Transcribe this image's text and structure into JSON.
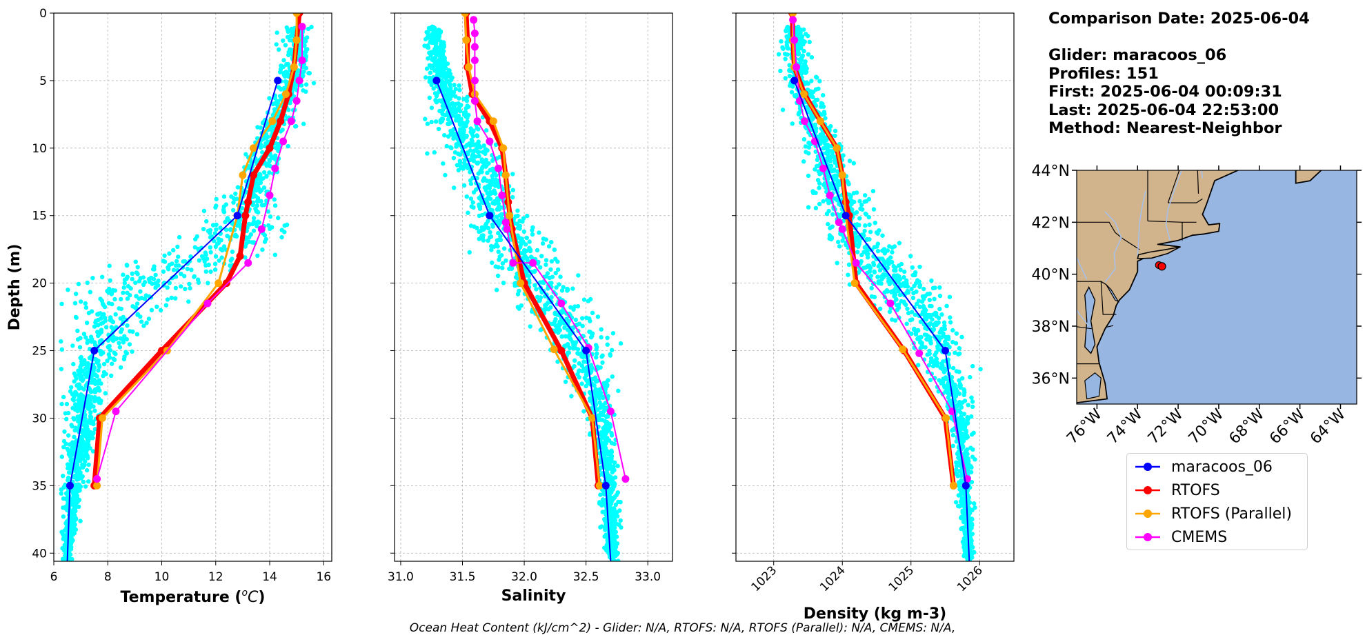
{
  "chart_data": [
    {
      "type": "line",
      "xlabel": "Temperature (°C)",
      "xlabel_parts": [
        "Temperature (",
        "o",
        "C)"
      ],
      "ylabel": "Depth (m)",
      "xlim": [
        6,
        16.3
      ],
      "ylim": [
        40.6,
        0
      ],
      "xticks": [
        6,
        8,
        10,
        12,
        14,
        16
      ],
      "yticks": [
        0,
        5,
        10,
        15,
        20,
        25,
        30,
        35,
        40
      ],
      "grid": true,
      "scatter_cloud": "glider raw observations (cyan)",
      "series": [
        {
          "name": "maracoos_06",
          "color": "#0000ff",
          "x": [
            14.3,
            12.8,
            7.5,
            6.6,
            6.5
          ],
          "depth": [
            5,
            15,
            25,
            35,
            40.6
          ]
        },
        {
          "name": "RTOFS",
          "color": "#ff0000",
          "x": [
            15.1,
            15.0,
            14.9,
            14.7,
            14.4,
            14.0,
            13.4,
            13.2,
            13.1,
            12.9,
            12.4,
            10.0,
            7.7,
            7.5
          ],
          "depth": [
            0,
            2,
            4,
            6,
            8,
            10,
            12,
            14,
            15,
            18,
            20,
            25,
            30,
            35
          ]
        },
        {
          "name": "RTOFS (Parallel)",
          "color": "#ffa500",
          "x": [
            15.0,
            15.0,
            14.9,
            14.6,
            14.1,
            13.4,
            13.0,
            12.8,
            12.1,
            10.2,
            7.8,
            7.6
          ],
          "depth": [
            0,
            2,
            4,
            6,
            8,
            10,
            12,
            15,
            20,
            25,
            30,
            35
          ]
        },
        {
          "name": "CMEMS",
          "color": "#ff00ff",
          "x": [
            15.2,
            15.2,
            15.1,
            15.0,
            14.8,
            14.5,
            14.2,
            14.0,
            13.7,
            13.2,
            11.7,
            8.3,
            7.6
          ],
          "depth": [
            1,
            3.5,
            5,
            6.5,
            8,
            9.5,
            11.5,
            13.5,
            16,
            18.5,
            21.5,
            29.5,
            34.5
          ]
        }
      ]
    },
    {
      "type": "line",
      "xlabel": "Salinity",
      "ylabel": "",
      "xlim": [
        30.95,
        33.2
      ],
      "ylim": [
        40.6,
        0
      ],
      "xticks": [
        "31.0",
        "31.5",
        "32.0",
        "32.5",
        "33.0"
      ],
      "yticks": [
        0,
        5,
        10,
        15,
        20,
        25,
        30,
        35,
        40
      ],
      "grid": true,
      "series": [
        {
          "name": "maracoos_06",
          "color": "#0000ff",
          "x": [
            31.29,
            31.72,
            32.5,
            32.66,
            32.7
          ],
          "depth": [
            5,
            15,
            25,
            35,
            40.6
          ]
        },
        {
          "name": "RTOFS",
          "color": "#ff0000",
          "x": [
            31.53,
            31.54,
            31.54,
            31.58,
            31.72,
            31.82,
            31.85,
            31.87,
            31.9,
            32.0,
            32.3,
            32.55,
            32.6
          ],
          "depth": [
            0,
            2,
            4,
            6,
            8,
            10,
            12,
            14,
            16,
            20,
            25,
            30,
            35
          ]
        },
        {
          "name": "RTOFS (Parallel)",
          "color": "#ffa500",
          "x": [
            31.52,
            31.53,
            31.55,
            31.6,
            31.75,
            31.83,
            31.85,
            31.88,
            31.97,
            32.24,
            32.55,
            32.61
          ],
          "depth": [
            0,
            2,
            4,
            6,
            8,
            10,
            12,
            15,
            20,
            24.9,
            30,
            35
          ]
        },
        {
          "name": "CMEMS",
          "color": "#ff00ff",
          "x": [
            31.59,
            31.6,
            31.6,
            31.6,
            31.6,
            31.6,
            31.62,
            31.72,
            31.79,
            31.82,
            31.85,
            31.86,
            31.91,
            32.07,
            32.3,
            32.52,
            32.7,
            32.82
          ],
          "depth": [
            0.5,
            1.5,
            2.5,
            3.5,
            5,
            6.5,
            8,
            9.5,
            11.5,
            13.5,
            15.5,
            16,
            18.5,
            18.5,
            21.5,
            24.8,
            29.5,
            34.5
          ]
        }
      ]
    },
    {
      "type": "line",
      "xlabel": "Density (kg m-3)",
      "ylabel": "",
      "xlim": [
        1022.45,
        1026.5
      ],
      "ylim": [
        40.6,
        0
      ],
      "xticks": [
        "1023",
        "1024",
        "1025",
        "1026"
      ],
      "yticks": [
        0,
        5,
        10,
        15,
        20,
        25,
        30,
        35,
        40
      ],
      "grid": true,
      "series": [
        {
          "name": "maracoos_06",
          "color": "#0000ff",
          "x": [
            1023.3,
            1024.05,
            1025.5,
            1025.8,
            1025.85
          ],
          "depth": [
            5,
            15,
            25,
            35,
            40.6
          ]
        },
        {
          "name": "RTOFS",
          "color": "#ff0000",
          "x": [
            1023.27,
            1023.28,
            1023.3,
            1023.45,
            1023.68,
            1023.92,
            1024.0,
            1024.05,
            1024.1,
            1024.2,
            1024.9,
            1025.5,
            1025.62
          ],
          "depth": [
            0,
            2,
            4,
            6,
            8,
            10,
            12,
            14,
            15,
            20,
            25,
            30,
            35
          ]
        },
        {
          "name": "RTOFS (Parallel)",
          "color": "#ffa500",
          "x": [
            1023.28,
            1023.28,
            1023.3,
            1023.44,
            1023.68,
            1023.92,
            1024.0,
            1024.05,
            1024.18,
            1024.88,
            1025.51,
            1025.62
          ],
          "depth": [
            0,
            2,
            4,
            6,
            8,
            10,
            12,
            15,
            20,
            24.9,
            30,
            35
          ]
        },
        {
          "name": "CMEMS",
          "color": "#ff00ff",
          "x": [
            1023.28,
            1023.3,
            1023.33,
            1023.38,
            1023.45,
            1023.6,
            1023.72,
            1023.82,
            1023.95,
            1024.0,
            1024.2,
            1024.7,
            1025.12,
            1025.6,
            1025.82
          ],
          "depth": [
            0.5,
            2,
            4,
            6.5,
            8,
            9.5,
            11.5,
            13.5,
            15.5,
            16,
            18.5,
            21.5,
            25.2,
            29.5,
            34.5
          ]
        }
      ]
    }
  ],
  "info": {
    "comparison_date": "Comparison Date: 2025-06-04",
    "glider": "Glider: maracoos_06",
    "profiles": "Profiles: 151",
    "first": "First: 2025-06-04 00:09:31",
    "last": "Last: 2025-06-04 22:53:00",
    "method": "Method: Nearest-Neighbor"
  },
  "map": {
    "lon_range": [
      -77,
      -63.2
    ],
    "lat_range": [
      35,
      44
    ],
    "lat_ticks": [
      "44°N",
      "42°N",
      "40°N",
      "38°N",
      "36°N"
    ],
    "lon_ticks": [
      "76°W",
      "74°W",
      "72°W",
      "70°W",
      "68°W",
      "66°W",
      "64°W"
    ],
    "land_color": "#d2b48c",
    "ocean_color": "#97b6e1",
    "glider_position": {
      "lon": -72.8,
      "lat": 40.3
    }
  },
  "legend": {
    "items": [
      {
        "label": "maracoos_06",
        "color": "#0000ff"
      },
      {
        "label": "RTOFS",
        "color": "#ff0000"
      },
      {
        "label": "RTOFS (Parallel)",
        "color": "#ffa500"
      },
      {
        "label": "CMEMS",
        "color": "#ff00ff"
      }
    ]
  },
  "footer": {
    "ohc_text": "Ocean Heat Content (kJ/cm^2) - Glider: N/A,  RTOFS: N/A,  RTOFS (Parallel): N/A,  CMEMS: N/A,"
  }
}
